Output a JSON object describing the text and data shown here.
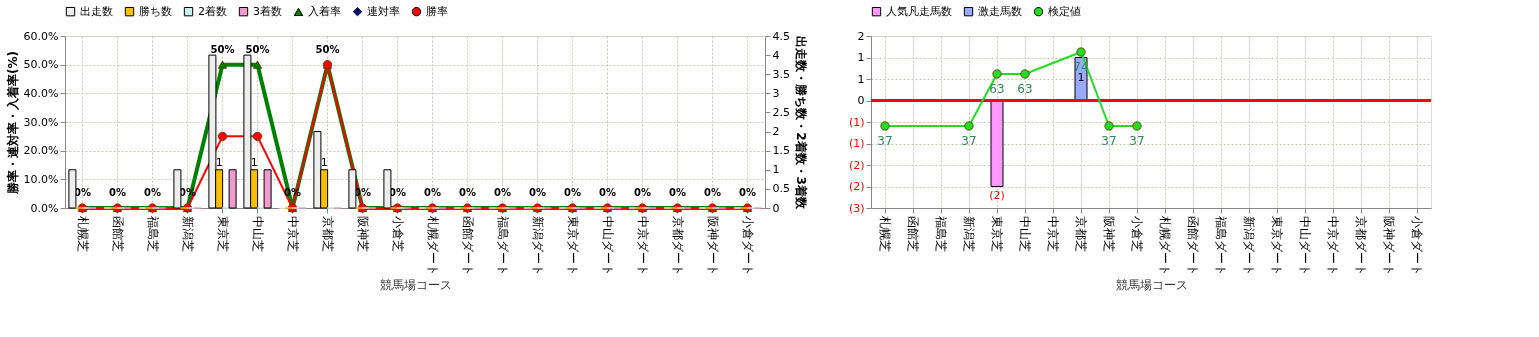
{
  "chart_data": [
    {
      "type": "bar",
      "xlabel": "競馬場コース",
      "ylabel": "勝率・連対率・入着率(%)",
      "y2label": "出走数・勝ち数・2着数・3着数",
      "categories": [
        "札幌芝",
        "函館芝",
        "福島芝",
        "新潟芝",
        "東京芝",
        "中山芝",
        "中京芝",
        "京都芝",
        "阪神芝",
        "小倉芝",
        "札幌ダート",
        "函館ダート",
        "福島ダート",
        "新潟ダート",
        "東京ダート",
        "中山ダート",
        "中京ダート",
        "京都ダート",
        "阪神ダート",
        "小倉ダート"
      ],
      "series": [
        {
          "name": "出走数",
          "color": "#eeeeee",
          "axis": "y2",
          "values": [
            1,
            0,
            0,
            1,
            4,
            4,
            0,
            2,
            1,
            1,
            0,
            0,
            0,
            0,
            0,
            0,
            0,
            0,
            0,
            0
          ]
        },
        {
          "name": "勝ち数",
          "color": "#f5c000",
          "axis": "y2",
          "values": [
            0,
            0,
            0,
            0,
            1,
            1,
            0,
            1,
            0,
            0,
            0,
            0,
            0,
            0,
            0,
            0,
            0,
            0,
            0,
            0
          ],
          "value_labels": [
            null,
            null,
            null,
            null,
            "1",
            "1",
            null,
            "1",
            null,
            null,
            null,
            null,
            null,
            null,
            null,
            null,
            null,
            null,
            null,
            null
          ]
        },
        {
          "name": "2着数",
          "color": "#c8f0f0",
          "axis": "y2",
          "values": [
            0,
            0,
            0,
            0,
            0,
            0,
            0,
            0,
            0,
            0,
            0,
            0,
            0,
            0,
            0,
            0,
            0,
            0,
            0,
            0
          ]
        },
        {
          "name": "3着数",
          "color": "#f09ad0",
          "axis": "y2",
          "values": [
            0,
            0,
            0,
            0,
            1,
            1,
            0,
            0,
            0,
            0,
            0,
            0,
            0,
            0,
            0,
            0,
            0,
            0,
            0,
            0
          ]
        },
        {
          "name": "入着率",
          "type": "line",
          "color": "#008000",
          "marker": "triangle",
          "values": [
            0,
            0,
            0,
            0,
            50,
            50,
            0,
            50,
            0,
            0,
            0,
            0,
            0,
            0,
            0,
            0,
            0,
            0,
            0,
            0
          ],
          "value_labels": [
            "0%",
            "0%",
            "0%",
            "0%",
            "50%",
            "50%",
            "0%",
            "50%",
            "0%",
            "0%",
            "0%",
            "0%",
            "0%",
            "0%",
            "0%",
            "0%",
            "0%",
            "0%",
            "0%",
            "0%"
          ]
        },
        {
          "name": "連対率",
          "type": "line",
          "color": "#000080",
          "marker": "diamond",
          "values": [
            null,
            null,
            null,
            null,
            null,
            null,
            null,
            null,
            null,
            null,
            null,
            null,
            null,
            null,
            null,
            null,
            null,
            null,
            null,
            null
          ]
        },
        {
          "name": "勝率",
          "type": "line",
          "color": "#ff0000",
          "marker": "circle",
          "values": [
            0,
            0,
            0,
            0,
            25,
            25,
            0,
            50,
            0,
            0,
            0,
            0,
            0,
            0,
            0,
            0,
            0,
            0,
            0,
            0
          ]
        }
      ],
      "ylim": [
        0,
        60
      ],
      "yticks": [
        {
          "value": 0,
          "label": "0.0%"
        },
        {
          "value": 10,
          "label": "10.0%"
        },
        {
          "value": 20,
          "label": "20.0%"
        },
        {
          "value": 30,
          "label": "30.0%"
        },
        {
          "value": 40,
          "label": "40.0%"
        },
        {
          "value": 50,
          "label": "50.0%"
        },
        {
          "value": 60,
          "label": "60.0%"
        }
      ],
      "y2lim": [
        0,
        4.5
      ],
      "y2ticks": [
        0,
        0.5,
        1,
        1.5,
        2,
        2.5,
        3,
        3.5,
        4,
        4.5
      ],
      "grid": true,
      "legend": "top"
    },
    {
      "type": "bar",
      "xlabel": "競馬場コース",
      "stacked": true,
      "categories": [
        "札幌芝",
        "函館芝",
        "福島芝",
        "新潟芝",
        "東京芝",
        "中山芝",
        "中京芝",
        "京都芝",
        "阪神芝",
        "小倉芝",
        "札幌ダート",
        "函館ダート",
        "福島ダート",
        "新潟ダート",
        "東京ダート",
        "中山ダート",
        "中京ダート",
        "京都ダート",
        "阪神ダート",
        "小倉ダート"
      ],
      "series": [
        {
          "name": "人気凡走馬数",
          "color": "#ff99ff",
          "values": [
            null,
            null,
            null,
            null,
            -2,
            null,
            null,
            null,
            null,
            null,
            null,
            null,
            null,
            null,
            null,
            null,
            null,
            null,
            null,
            null
          ],
          "value_labels": [
            null,
            null,
            null,
            null,
            "(2)",
            null,
            null,
            null,
            null,
            null,
            null,
            null,
            null,
            null,
            null,
            null,
            null,
            null,
            null,
            null
          ]
        },
        {
          "name": "激走馬数",
          "color": "#99aaff",
          "values": [
            null,
            null,
            null,
            null,
            null,
            null,
            null,
            1,
            null,
            null,
            null,
            null,
            null,
            null,
            null,
            null,
            null,
            null,
            null,
            null
          ],
          "value_labels": [
            null,
            null,
            null,
            null,
            null,
            null,
            null,
            "1",
            null,
            null,
            null,
            null,
            null,
            null,
            null,
            null,
            null,
            null,
            null,
            null
          ]
        },
        {
          "name": "検定値",
          "type": "line",
          "axis": "y2",
          "color": "#22dd22",
          "marker": "circle",
          "values": [
            37,
            null,
            null,
            37,
            63,
            63,
            null,
            74,
            37,
            37,
            null,
            null,
            null,
            null,
            null,
            null,
            null,
            null,
            null,
            null
          ],
          "value_labels": [
            "37",
            null,
            null,
            "37",
            "63",
            "63",
            null,
            "74",
            "37",
            "37",
            null,
            null,
            null,
            null,
            null,
            null,
            null,
            null,
            null,
            null
          ]
        }
      ],
      "ylim": [
        -2.5,
        1.5
      ],
      "yticks": [
        {
          "value": 1.5,
          "label": "2"
        },
        {
          "value": 1,
          "label": "1"
        },
        {
          "value": 0.5,
          "label": "1"
        },
        {
          "value": 0,
          "label": "0"
        },
        {
          "value": -0.5,
          "label": "(1)"
        },
        {
          "value": -1,
          "label": "(1)"
        },
        {
          "value": -1.5,
          "label": "(2)"
        },
        {
          "value": -2,
          "label": "(2)"
        },
        {
          "value": -2.5,
          "label": "(3)"
        }
      ],
      "y2lim": [
        -4,
        82
      ],
      "ref_lines": [
        {
          "axis": "y",
          "value": 0,
          "color": "#ff0000"
        }
      ],
      "grid": true,
      "legend": "top"
    }
  ]
}
